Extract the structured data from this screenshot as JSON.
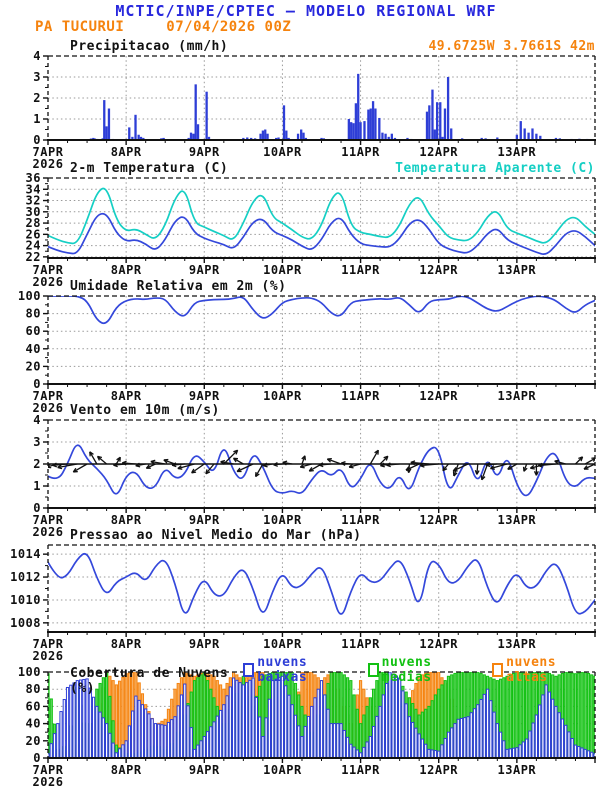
{
  "header": {
    "title": "MCTIC/INPE/CPTEC — MODELO REGIONAL WRF",
    "station": "PA TUCURUI",
    "run": "07/04/2026 00Z",
    "location": "49.6725W 3.7661S 42m"
  },
  "colors": {
    "title_blue": "#2828dd",
    "orange": "#f5830e",
    "line_blue": "#3448db",
    "cyan": "#15cfc4",
    "bar_blue": "#2e3ed6",
    "green": "#12c112",
    "green_fill": "#63d863",
    "orange_fill": "#f8b36a",
    "grid_gray": "#9a9a9a",
    "axis_black": "#111111"
  },
  "x_axis": {
    "days": [
      "7APR",
      "8APR",
      "9APR",
      "10APR",
      "11APR",
      "12APR",
      "13APR"
    ],
    "year": "2026",
    "span_days": 7
  },
  "chart_data": [
    {
      "type": "bar",
      "title": "Precipitacao (mm/h)",
      "ylim": [
        0,
        4
      ],
      "yticks": [
        0,
        1,
        2,
        3,
        4
      ],
      "bars": [
        [
          0.55,
          0.07
        ],
        [
          0.58,
          0.1
        ],
        [
          0.6,
          0.07
        ],
        [
          0.63,
          0.05
        ],
        [
          0.7,
          0.08
        ],
        [
          0.72,
          1.9
        ],
        [
          0.75,
          0.65
        ],
        [
          0.78,
          1.5
        ],
        [
          0.83,
          0.05
        ],
        [
          1.04,
          0.6
        ],
        [
          1.08,
          0.15
        ],
        [
          1.12,
          1.2
        ],
        [
          1.16,
          0.25
        ],
        [
          1.19,
          0.15
        ],
        [
          1.22,
          0.1
        ],
        [
          1.45,
          0.08
        ],
        [
          1.48,
          0.1
        ],
        [
          1.8,
          0.1
        ],
        [
          1.83,
          0.35
        ],
        [
          1.86,
          0.3
        ],
        [
          1.89,
          2.65
        ],
        [
          1.92,
          0.75
        ],
        [
          2.03,
          2.3
        ],
        [
          2.06,
          0.15
        ],
        [
          2.5,
          0.1
        ],
        [
          2.55,
          0.12
        ],
        [
          2.6,
          0.1
        ],
        [
          2.65,
          0.08
        ],
        [
          2.72,
          0.3
        ],
        [
          2.75,
          0.45
        ],
        [
          2.78,
          0.5
        ],
        [
          2.81,
          0.3
        ],
        [
          2.92,
          0.1
        ],
        [
          2.95,
          0.12
        ],
        [
          3.02,
          1.65
        ],
        [
          3.05,
          0.45
        ],
        [
          3.08,
          0.1
        ],
        [
          3.2,
          0.3
        ],
        [
          3.24,
          0.5
        ],
        [
          3.27,
          0.35
        ],
        [
          3.3,
          0.1
        ],
        [
          3.5,
          0.1
        ],
        [
          3.53,
          0.08
        ],
        [
          3.85,
          1.0
        ],
        [
          3.88,
          0.85
        ],
        [
          3.91,
          0.8
        ],
        [
          3.94,
          1.75
        ],
        [
          3.97,
          3.15
        ],
        [
          4.0,
          0.85
        ],
        [
          4.05,
          0.9
        ],
        [
          4.1,
          1.45
        ],
        [
          4.13,
          1.5
        ],
        [
          4.16,
          1.85
        ],
        [
          4.19,
          1.5
        ],
        [
          4.24,
          1.05
        ],
        [
          4.28,
          0.35
        ],
        [
          4.32,
          0.3
        ],
        [
          4.36,
          0.15
        ],
        [
          4.4,
          0.3
        ],
        [
          4.44,
          0.1
        ],
        [
          4.6,
          0.1
        ],
        [
          4.65,
          0.05
        ],
        [
          4.85,
          1.35
        ],
        [
          4.88,
          1.65
        ],
        [
          4.92,
          2.4
        ],
        [
          4.95,
          0.5
        ],
        [
          4.98,
          1.8
        ],
        [
          5.02,
          1.8
        ],
        [
          5.05,
          0.15
        ],
        [
          5.08,
          1.5
        ],
        [
          5.12,
          3.0
        ],
        [
          5.16,
          0.55
        ],
        [
          5.3,
          0.08
        ],
        [
          5.55,
          0.1
        ],
        [
          5.6,
          0.08
        ],
        [
          5.75,
          0.12
        ],
        [
          6.0,
          0.25
        ],
        [
          6.05,
          0.9
        ],
        [
          6.1,
          0.55
        ],
        [
          6.15,
          0.35
        ],
        [
          6.2,
          0.55
        ],
        [
          6.25,
          0.3
        ],
        [
          6.3,
          0.2
        ],
        [
          6.5,
          0.1
        ],
        [
          6.55,
          0.08
        ],
        [
          6.7,
          0.05
        ],
        [
          6.8,
          0.06
        ],
        [
          6.9,
          0.05
        ]
      ]
    },
    {
      "type": "line",
      "title": "2-m Temperatura (C)",
      "title2": "Temperatura Aparente (C)",
      "ylim": [
        21.8,
        36
      ],
      "yticks": [
        22,
        24,
        26,
        28,
        30,
        32,
        34,
        36
      ],
      "x_step_days": 0.125,
      "series": [
        {
          "name": "2-m Temperatura (C)",
          "color_key": "line_blue",
          "values": [
            23.8,
            23.1,
            22.7,
            22.5,
            26.0,
            29.5,
            29.8,
            26.2,
            24.7,
            25.1,
            24.3,
            23.0,
            25.0,
            28.5,
            29.4,
            26.2,
            25.3,
            24.7,
            24.2,
            23.3,
            25.5,
            28.3,
            28.9,
            26.5,
            25.8,
            25.0,
            23.9,
            23.1,
            25.0,
            28.2,
            29.2,
            26.0,
            24.3,
            24.0,
            23.8,
            23.7,
            25.2,
            28.0,
            28.8,
            27.0,
            24.3,
            23.4,
            22.9,
            22.6,
            24.0,
            26.2,
            27.2,
            25.0,
            24.2,
            23.5,
            22.8,
            22.3,
            24.0,
            26.2,
            26.8,
            25.6,
            24.0
          ]
        },
        {
          "name": "Temperatura Aparente (C)",
          "color_key": "cyan",
          "values": [
            25.8,
            25.0,
            24.5,
            24.3,
            28.5,
            33.5,
            34.6,
            28.5,
            26.5,
            27.0,
            26.0,
            25.0,
            27.5,
            32.5,
            34.4,
            28.0,
            27.3,
            26.5,
            25.8,
            24.8,
            28.0,
            32.0,
            33.4,
            29.0,
            28.0,
            26.8,
            25.5,
            25.0,
            27.5,
            32.5,
            33.9,
            27.5,
            26.3,
            26.0,
            25.6,
            25.4,
            27.5,
            31.5,
            33.0,
            29.5,
            27.6,
            25.4,
            25.0,
            24.8,
            26.3,
            29.3,
            30.4,
            27.0,
            26.2,
            25.6,
            24.8,
            24.3,
            26.2,
            28.6,
            29.2,
            27.4,
            26.0
          ]
        }
      ]
    },
    {
      "type": "line",
      "title": "Umidade Relativa em 2m (%)",
      "ylim": [
        0,
        100
      ],
      "yticks": [
        0,
        20,
        40,
        60,
        80,
        100
      ],
      "x_step_days": 0.125,
      "series": [
        {
          "name": "Umidade Relativa em 2m (%)",
          "color_key": "line_blue",
          "values": [
            100,
            100,
            100,
            100,
            95,
            72,
            67,
            88,
            95,
            97,
            96,
            98,
            97,
            82,
            75,
            93,
            95,
            96,
            96,
            97,
            100,
            84,
            73,
            80,
            93,
            96,
            98,
            98,
            93,
            80,
            76,
            93,
            95,
            96,
            97,
            96,
            99,
            90,
            79,
            94,
            96,
            96,
            100,
            99,
            92,
            85,
            82,
            88,
            94,
            98,
            100,
            99,
            95,
            86,
            80,
            90,
            95
          ]
        }
      ]
    },
    {
      "type": "wind",
      "title": "Vento em 10m (m/s)",
      "ylim": [
        0,
        4
      ],
      "yticks": [
        0,
        1,
        2,
        3,
        4
      ],
      "x_step_days": 0.125,
      "arrow_line_y": 2,
      "series": [
        {
          "name": "Vento em 10m (m/s)",
          "color_key": "line_blue",
          "values": [
            1.45,
            1.2,
            2.0,
            3.1,
            2.2,
            1.8,
            1.3,
            0.4,
            1.5,
            1.7,
            0.9,
            0.9,
            1.9,
            1.3,
            1.5,
            2.5,
            2.1,
            1.5,
            3.0,
            1.6,
            1.2,
            2.6,
            1.9,
            0.8,
            0.65,
            0.8,
            0.6,
            1.3,
            1.8,
            1.4,
            1.9,
            0.8,
            1.3,
            2.2,
            1.1,
            0.8,
            1.6,
            0.6,
            1.9,
            2.7,
            2.8,
            0.6,
            1.5,
            2.3,
            1.0,
            2.4,
            1.2,
            2.5,
            1.0,
            0.4,
            1.2,
            2.3,
            2.6,
            1.2,
            0.9,
            1.4,
            1.35
          ]
        }
      ],
      "arrow_angles_deg": [
        200,
        195,
        185,
        190,
        210,
        120,
        140,
        60,
        185,
        175,
        190,
        205,
        170,
        160,
        185,
        195,
        215,
        230,
        45,
        170,
        150,
        205,
        240,
        190,
        185,
        170,
        70,
        195,
        210,
        185,
        160,
        175,
        195,
        60,
        45,
        190,
        185,
        265,
        205,
        175,
        185,
        230,
        250,
        205,
        265,
        250,
        185,
        195,
        210,
        250,
        270,
        195,
        185,
        165,
        45,
        30,
        205
      ]
    },
    {
      "type": "line",
      "title": "Pressao ao Nivel Medio do Mar (hPa)",
      "ylim": [
        1007.2,
        1014.8
      ],
      "yticks": [
        1008,
        1010,
        1012,
        1014
      ],
      "x_step_days": 0.125,
      "series": [
        {
          "name": "Pressao ao Nivel Medio do Mar (hPa)",
          "color_key": "line_blue",
          "values": [
            1013.3,
            1011.8,
            1012.1,
            1013.6,
            1014.3,
            1011.9,
            1010.3,
            1011.6,
            1012.0,
            1012.5,
            1011.5,
            1013.0,
            1013.7,
            1011.5,
            1008.2,
            1010.5,
            1012.0,
            1010.4,
            1010.3,
            1012.0,
            1012.9,
            1011.0,
            1008.3,
            1010.8,
            1012.5,
            1011.0,
            1011.2,
            1012.3,
            1013.1,
            1010.8,
            1008.1,
            1010.8,
            1012.5,
            1011.5,
            1011.6,
            1012.8,
            1013.7,
            1011.8,
            1009.0,
            1013.5,
            1013.2,
            1011.4,
            1011.6,
            1013.0,
            1013.8,
            1011.0,
            1009.4,
            1011.3,
            1012.5,
            1011.0,
            1011.1,
            1012.6,
            1013.4,
            1011.5,
            1008.7,
            1008.9,
            1010.0
          ]
        }
      ]
    },
    {
      "type": "cloud",
      "title": "Cobertura de Nuvens (%)",
      "ylim": [
        0,
        100
      ],
      "yticks": [
        0,
        20,
        40,
        60,
        80,
        100
      ],
      "x_step_days": 0.125,
      "legend": [
        {
          "label": "nuvens baixas",
          "color_key": "blue"
        },
        {
          "label": "nuvens medias",
          "color_key": "green"
        },
        {
          "label": "nuvens altas",
          "color_key": "orange"
        }
      ],
      "series": [
        {
          "name": "nuvens altas",
          "values": [
            8,
            5,
            8,
            15,
            25,
            45,
            100,
            85,
            98,
            100,
            62,
            38,
            45,
            80,
            100,
            95,
            100,
            95,
            80,
            100,
            90,
            100,
            100,
            80,
            60,
            30,
            100,
            100,
            90,
            100,
            70,
            40,
            90,
            60,
            30,
            20,
            30,
            70,
            95,
            100,
            100,
            80,
            45,
            15,
            8,
            5,
            5,
            8,
            10,
            8,
            5,
            5,
            8,
            10,
            8,
            5,
            5
          ]
        },
        {
          "name": "nuvens medias",
          "values": [
            98,
            10,
            15,
            82,
            20,
            80,
            100,
            15,
            5,
            5,
            10,
            15,
            10,
            20,
            50,
            90,
            100,
            70,
            40,
            65,
            95,
            60,
            95,
            100,
            100,
            100,
            60,
            30,
            60,
            100,
            100,
            90,
            40,
            70,
            100,
            100,
            90,
            70,
            50,
            60,
            80,
            95,
            100,
            100,
            100,
            95,
            90,
            95,
            100,
            98,
            100,
            100,
            95,
            100,
            98,
            100,
            95
          ]
        },
        {
          "name": "nuvens baixas",
          "values": [
            5,
            40,
            82,
            90,
            92,
            60,
            40,
            6,
            20,
            72,
            57,
            40,
            38,
            48,
            86,
            10,
            25,
            42,
            62,
            93,
            85,
            93,
            25,
            90,
            95,
            62,
            25,
            60,
            90,
            40,
            40,
            16,
            6,
            25,
            60,
            100,
            93,
            48,
            28,
            10,
            8,
            30,
            45,
            48,
            62,
            80,
            40,
            10,
            12,
            22,
            50,
            85,
            60,
            38,
            15,
            10,
            5
          ]
        }
      ]
    }
  ]
}
